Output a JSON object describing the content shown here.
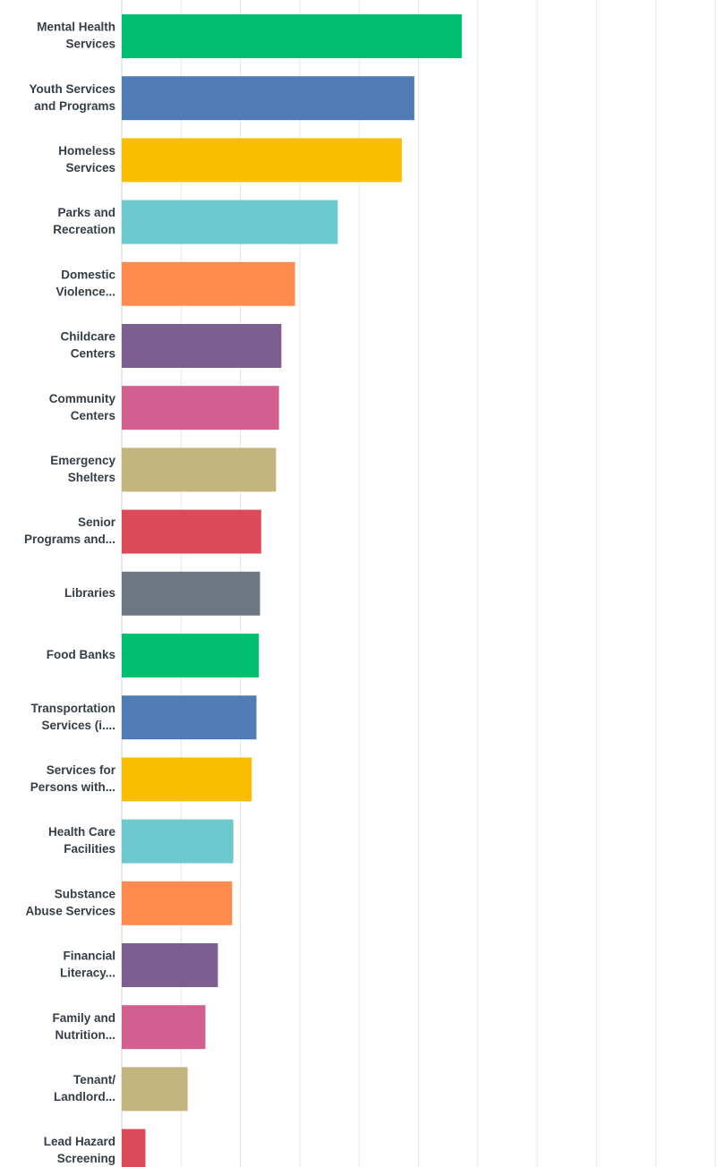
{
  "chart_data": {
    "type": "bar",
    "orientation": "horizontal",
    "grid": true,
    "xlim": [
      0,
      1
    ],
    "categories": [
      [
        "Mental Health",
        "Services"
      ],
      [
        "Youth Services",
        "and Programs"
      ],
      [
        "Homeless",
        "Services"
      ],
      [
        "Parks and",
        "Recreation"
      ],
      [
        "Domestic",
        "Violence..."
      ],
      [
        "Childcare",
        "Centers"
      ],
      [
        "Community",
        "Centers"
      ],
      [
        "Emergency",
        "Shelters"
      ],
      [
        "Senior",
        "Programs and..."
      ],
      [
        "Libraries"
      ],
      [
        "Food Banks"
      ],
      [
        "Transportation",
        "Services (i...."
      ],
      [
        "Services for",
        "Persons with..."
      ],
      [
        "Health Care",
        "Facilities"
      ],
      [
        "Substance",
        "Abuse Services"
      ],
      [
        "Financial",
        "Literacy..."
      ],
      [
        "Family and",
        "Nutrition..."
      ],
      [
        "Tenant/",
        "Landlord..."
      ],
      [
        "Lead Hazard",
        "Screening"
      ]
    ],
    "values": [
      0.573,
      0.493,
      0.472,
      0.364,
      0.292,
      0.269,
      0.265,
      0.26,
      0.235,
      0.233,
      0.231,
      0.227,
      0.219,
      0.188,
      0.186,
      0.162,
      0.141,
      0.111,
      0.04
    ],
    "colors": [
      "#00bf6f",
      "#507cb6",
      "#f9be00",
      "#6bc8cd",
      "#ff8b4f",
      "#7d5e90",
      "#d25f90",
      "#c4b57f",
      "#dd4b5a",
      "#6e7882",
      "#00bf6f",
      "#507cb6",
      "#f9be00",
      "#6bc8cd",
      "#ff8b4f",
      "#7d5e90",
      "#d25f90",
      "#c4b57f",
      "#dd4b5a"
    ]
  }
}
